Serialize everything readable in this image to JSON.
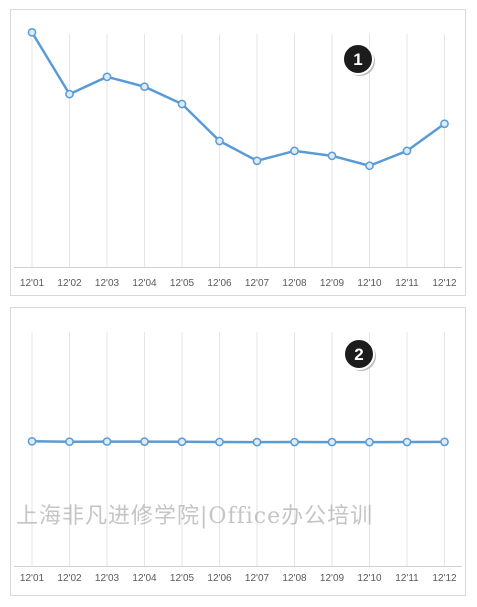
{
  "chart_data": [
    {
      "type": "line",
      "badge": "1",
      "categories": [
        "12'01",
        "12'02",
        "12'03",
        "12'04",
        "12'05",
        "12'06",
        "12'07",
        "12'08",
        "12'09",
        "12'10",
        "12'11",
        "12'12"
      ],
      "series": [
        {
          "values": [
            95,
            70,
            77,
            73,
            66,
            51,
            43,
            47,
            45,
            41,
            47,
            58
          ]
        }
      ],
      "ylim": [
        0,
        100
      ],
      "color": "#5b9bd5",
      "grid": "vertical"
    },
    {
      "type": "line",
      "badge": "2",
      "categories": [
        "12'01",
        "12'02",
        "12'03",
        "12'04",
        "12'05",
        "12'06",
        "12'07",
        "12'08",
        "12'09",
        "12'10",
        "12'11",
        "12'12"
      ],
      "series": [
        {
          "values": [
            95,
            70,
            77,
            73,
            66,
            51,
            43,
            47,
            45,
            41,
            47,
            58
          ]
        }
      ],
      "ylim": [
        -7900,
        8000
      ],
      "color": "#5b9bd5",
      "grid": "vertical"
    }
  ],
  "watermark": "上海非凡进修学院|Office办公培训"
}
